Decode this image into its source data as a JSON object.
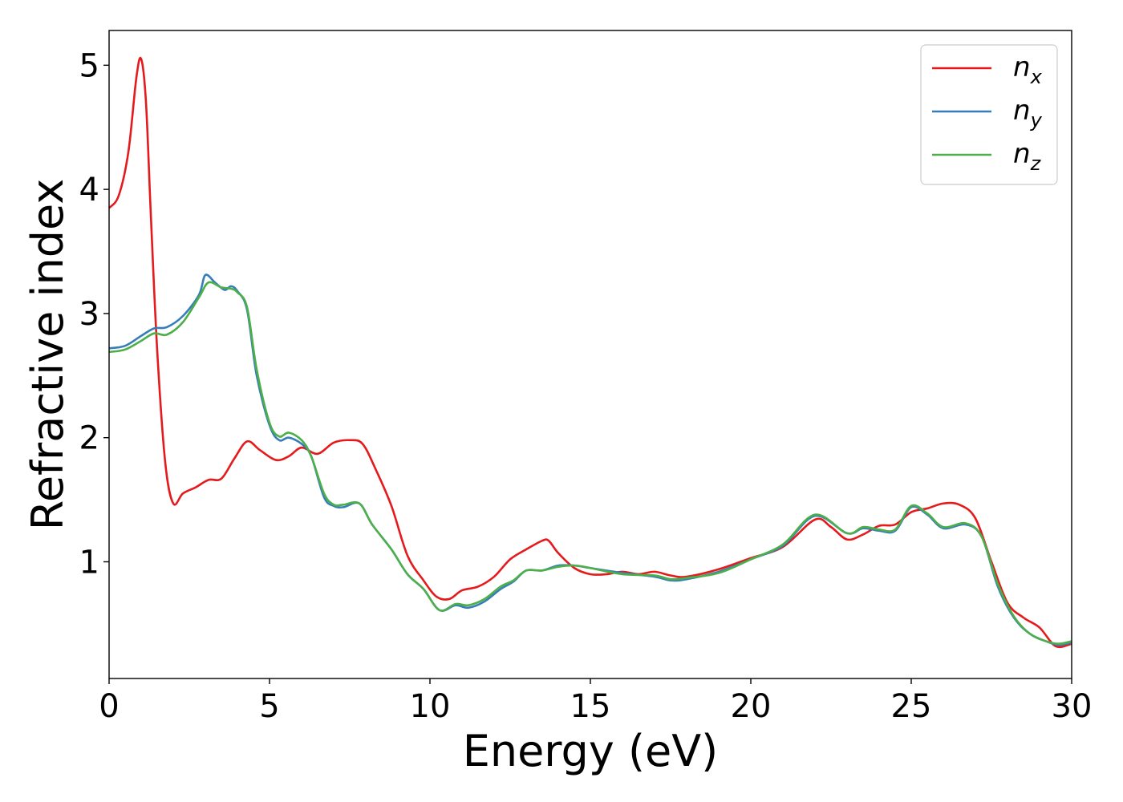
{
  "chart_data": {
    "type": "line",
    "xlabel": "Energy (eV)",
    "ylabel": "Refractive index",
    "xlim": [
      0,
      30
    ],
    "ylim": [
      0.06,
      5.28
    ],
    "xticks": [
      0,
      5,
      10,
      15,
      20,
      25,
      30
    ],
    "yticks": [
      1,
      2,
      3,
      4,
      5
    ],
    "grid": false,
    "legend_position": "top-right",
    "series": [
      {
        "name": "n",
        "subscript": "x",
        "color": "#e41a1c",
        "points": [
          [
            0,
            3.85
          ],
          [
            0.3,
            3.95
          ],
          [
            0.6,
            4.3
          ],
          [
            0.85,
            4.9
          ],
          [
            1.0,
            5.05
          ],
          [
            1.15,
            4.7
          ],
          [
            1.3,
            3.8
          ],
          [
            1.5,
            2.7
          ],
          [
            1.75,
            1.8
          ],
          [
            2.0,
            1.47
          ],
          [
            2.3,
            1.55
          ],
          [
            2.7,
            1.6
          ],
          [
            3.1,
            1.66
          ],
          [
            3.5,
            1.67
          ],
          [
            3.9,
            1.83
          ],
          [
            4.3,
            1.97
          ],
          [
            4.7,
            1.9
          ],
          [
            5.2,
            1.82
          ],
          [
            5.6,
            1.85
          ],
          [
            6.0,
            1.92
          ],
          [
            6.5,
            1.87
          ],
          [
            7.0,
            1.96
          ],
          [
            7.5,
            1.98
          ],
          [
            7.9,
            1.95
          ],
          [
            8.3,
            1.75
          ],
          [
            8.8,
            1.45
          ],
          [
            9.3,
            1.05
          ],
          [
            9.8,
            0.85
          ],
          [
            10.2,
            0.72
          ],
          [
            10.6,
            0.7
          ],
          [
            11.0,
            0.77
          ],
          [
            11.5,
            0.8
          ],
          [
            12.0,
            0.88
          ],
          [
            12.5,
            1.02
          ],
          [
            13.0,
            1.1
          ],
          [
            13.5,
            1.17
          ],
          [
            13.7,
            1.17
          ],
          [
            14.0,
            1.07
          ],
          [
            14.5,
            0.95
          ],
          [
            15.0,
            0.9
          ],
          [
            15.5,
            0.9
          ],
          [
            16.0,
            0.92
          ],
          [
            16.5,
            0.9
          ],
          [
            17.0,
            0.92
          ],
          [
            17.5,
            0.89
          ],
          [
            18.0,
            0.88
          ],
          [
            19.0,
            0.94
          ],
          [
            20.0,
            1.03
          ],
          [
            21.0,
            1.12
          ],
          [
            22.0,
            1.34
          ],
          [
            22.5,
            1.28
          ],
          [
            23.0,
            1.18
          ],
          [
            23.5,
            1.22
          ],
          [
            24.0,
            1.29
          ],
          [
            24.5,
            1.3
          ],
          [
            25.0,
            1.4
          ],
          [
            25.5,
            1.43
          ],
          [
            26.0,
            1.47
          ],
          [
            26.5,
            1.46
          ],
          [
            27.0,
            1.35
          ],
          [
            27.5,
            1.0
          ],
          [
            28.0,
            0.67
          ],
          [
            28.5,
            0.55
          ],
          [
            29.0,
            0.47
          ],
          [
            29.5,
            0.32
          ],
          [
            30.0,
            0.34
          ]
        ]
      },
      {
        "name": "n",
        "subscript": "y",
        "color": "#377eb8",
        "points": [
          [
            0,
            2.72
          ],
          [
            0.5,
            2.74
          ],
          [
            1.0,
            2.82
          ],
          [
            1.4,
            2.88
          ],
          [
            1.8,
            2.89
          ],
          [
            2.3,
            2.98
          ],
          [
            2.8,
            3.15
          ],
          [
            3.0,
            3.31
          ],
          [
            3.3,
            3.25
          ],
          [
            3.6,
            3.19
          ],
          [
            3.8,
            3.22
          ],
          [
            4.0,
            3.18
          ],
          [
            4.3,
            3.03
          ],
          [
            4.6,
            2.5
          ],
          [
            5.0,
            2.1
          ],
          [
            5.3,
            1.98
          ],
          [
            5.6,
            2.0
          ],
          [
            6.0,
            1.95
          ],
          [
            6.3,
            1.85
          ],
          [
            6.7,
            1.52
          ],
          [
            7.0,
            1.45
          ],
          [
            7.3,
            1.44
          ],
          [
            7.8,
            1.47
          ],
          [
            8.2,
            1.3
          ],
          [
            8.8,
            1.1
          ],
          [
            9.3,
            0.9
          ],
          [
            9.8,
            0.78
          ],
          [
            10.3,
            0.61
          ],
          [
            10.8,
            0.65
          ],
          [
            11.2,
            0.63
          ],
          [
            11.7,
            0.68
          ],
          [
            12.2,
            0.78
          ],
          [
            12.6,
            0.84
          ],
          [
            13.0,
            0.93
          ],
          [
            13.5,
            0.93
          ],
          [
            14.0,
            0.97
          ],
          [
            14.5,
            0.97
          ],
          [
            15.0,
            0.95
          ],
          [
            16.0,
            0.91
          ],
          [
            17.0,
            0.88
          ],
          [
            17.5,
            0.85
          ],
          [
            18.0,
            0.86
          ],
          [
            19.0,
            0.92
          ],
          [
            20.0,
            1.02
          ],
          [
            21.0,
            1.13
          ],
          [
            22.0,
            1.37
          ],
          [
            23.0,
            1.23
          ],
          [
            23.5,
            1.27
          ],
          [
            24.0,
            1.25
          ],
          [
            24.5,
            1.25
          ],
          [
            25.0,
            1.44
          ],
          [
            25.5,
            1.38
          ],
          [
            26.0,
            1.27
          ],
          [
            26.7,
            1.3
          ],
          [
            27.2,
            1.2
          ],
          [
            27.7,
            0.8
          ],
          [
            28.2,
            0.55
          ],
          [
            28.7,
            0.42
          ],
          [
            29.2,
            0.36
          ],
          [
            29.6,
            0.33
          ],
          [
            30.0,
            0.35
          ]
        ]
      },
      {
        "name": "n",
        "subscript": "z",
        "color": "#4daf4a",
        "points": [
          [
            0,
            2.69
          ],
          [
            0.5,
            2.71
          ],
          [
            1.0,
            2.78
          ],
          [
            1.4,
            2.84
          ],
          [
            1.8,
            2.83
          ],
          [
            2.3,
            2.93
          ],
          [
            2.8,
            3.13
          ],
          [
            3.1,
            3.25
          ],
          [
            3.5,
            3.21
          ],
          [
            3.8,
            3.2
          ],
          [
            4.0,
            3.17
          ],
          [
            4.3,
            3.05
          ],
          [
            4.6,
            2.55
          ],
          [
            5.0,
            2.12
          ],
          [
            5.3,
            2.01
          ],
          [
            5.6,
            2.04
          ],
          [
            6.0,
            1.98
          ],
          [
            6.3,
            1.85
          ],
          [
            6.7,
            1.55
          ],
          [
            7.0,
            1.46
          ],
          [
            7.3,
            1.46
          ],
          [
            7.8,
            1.47
          ],
          [
            8.2,
            1.3
          ],
          [
            8.8,
            1.1
          ],
          [
            9.3,
            0.9
          ],
          [
            9.8,
            0.78
          ],
          [
            10.3,
            0.61
          ],
          [
            10.8,
            0.66
          ],
          [
            11.2,
            0.65
          ],
          [
            11.7,
            0.7
          ],
          [
            12.2,
            0.8
          ],
          [
            12.6,
            0.85
          ],
          [
            13.0,
            0.93
          ],
          [
            13.5,
            0.93
          ],
          [
            14.0,
            0.96
          ],
          [
            14.5,
            0.97
          ],
          [
            15.0,
            0.95
          ],
          [
            16.0,
            0.9
          ],
          [
            17.0,
            0.89
          ],
          [
            17.5,
            0.86
          ],
          [
            18.0,
            0.87
          ],
          [
            19.0,
            0.91
          ],
          [
            20.0,
            1.02
          ],
          [
            21.0,
            1.14
          ],
          [
            22.0,
            1.38
          ],
          [
            23.0,
            1.23
          ],
          [
            23.5,
            1.28
          ],
          [
            24.0,
            1.26
          ],
          [
            24.5,
            1.26
          ],
          [
            25.0,
            1.45
          ],
          [
            25.5,
            1.39
          ],
          [
            26.0,
            1.28
          ],
          [
            26.7,
            1.31
          ],
          [
            27.2,
            1.2
          ],
          [
            27.7,
            0.82
          ],
          [
            28.2,
            0.56
          ],
          [
            28.7,
            0.42
          ],
          [
            29.2,
            0.36
          ],
          [
            29.6,
            0.34
          ],
          [
            30.0,
            0.36
          ]
        ]
      }
    ]
  }
}
